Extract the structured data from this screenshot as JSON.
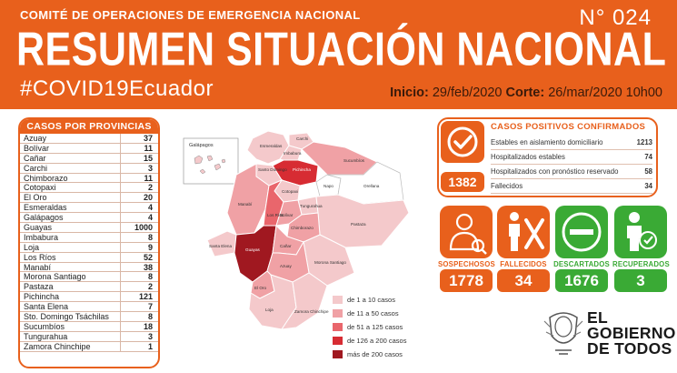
{
  "header": {
    "org": "COMITÉ DE OPERACIONES DE EMERGENCIA NACIONAL",
    "number": "N° 024",
    "title": "RESUMEN SITUACIÓN NACIONAL",
    "hashtag": "#COVID19Ecuador",
    "start_label": "Inicio:",
    "start_value": "29/feb/2020",
    "cut_label": "Corte:",
    "cut_value": "26/mar/2020 10h00"
  },
  "provinces": {
    "title": "CASOS POR PROVINCIAS",
    "rows": [
      {
        "name": "Azuay",
        "value": "37"
      },
      {
        "name": "Bolívar",
        "value": "11"
      },
      {
        "name": "Cañar",
        "value": "15"
      },
      {
        "name": "Carchi",
        "value": "3"
      },
      {
        "name": "Chimborazo",
        "value": "11"
      },
      {
        "name": "Cotopaxi",
        "value": "2"
      },
      {
        "name": "El Oro",
        "value": "20"
      },
      {
        "name": "Esmeraldas",
        "value": "4"
      },
      {
        "name": "Galápagos",
        "value": "4"
      },
      {
        "name": "Guayas",
        "value": "1000"
      },
      {
        "name": "Imbabura",
        "value": "8"
      },
      {
        "name": "Loja",
        "value": "9"
      },
      {
        "name": "Los Ríos",
        "value": "52"
      },
      {
        "name": "Manabí",
        "value": "38"
      },
      {
        "name": "Morona Santiago",
        "value": "8"
      },
      {
        "name": "Pastaza",
        "value": "2"
      },
      {
        "name": "Pichincha",
        "value": "121"
      },
      {
        "name": "Santa Elena",
        "value": "7"
      },
      {
        "name": "Sto. Domingo Tsáchilas",
        "value": "8"
      },
      {
        "name": "Sucumbíos",
        "value": "18"
      },
      {
        "name": "Tungurahua",
        "value": "3"
      },
      {
        "name": "Zamora Chinchipe",
        "value": "1"
      }
    ]
  },
  "map": {
    "galapagos_label": "Galápagos",
    "labels": {
      "esmeraldas": "Esmeraldas",
      "carchi": "Carchi",
      "imbabura": "Imbabura",
      "pichincha": "Pichincha",
      "sucumbios": "Sucumbíos",
      "sto_domingo": "Santo Domingo",
      "napo": "Napo",
      "orellana": "Orellana",
      "manabi": "Manabí",
      "cotopaxi": "Cotopaxi",
      "los_rios": "Los Ríos",
      "tungurahua": "Tungurahua",
      "bolivar": "Bolívar",
      "pastaza": "Pastaza",
      "santa_elena": "Santa Elena",
      "guayas": "Guayas",
      "chimborazo": "Chimborazo",
      "canar": "Cañar",
      "morona": "Morona Santiago",
      "azuay": "Azuay",
      "el_oro": "El Oro",
      "loja": "Loja",
      "zamora": "Zamora Chinchipe"
    },
    "legend": [
      {
        "label": "de 1 a 10 casos",
        "color": "#f4c9cb"
      },
      {
        "label": "de 11 a 50 casos",
        "color": "#f0a1a5"
      },
      {
        "label": "de 51 a 125 casos",
        "color": "#e9666c"
      },
      {
        "label": "de 126 a 200 casos",
        "color": "#d72c33"
      },
      {
        "label": "más de 200 casos",
        "color": "#a01820"
      }
    ]
  },
  "confirmed": {
    "title": "CASOS POSITIVOS CONFIRMADOS",
    "total": "1382",
    "rows": [
      {
        "label": "Estables en aislamiento domiciliario",
        "value": "1213"
      },
      {
        "label": "Hospitalizados estables",
        "value": "74"
      },
      {
        "label": "Hospitalizados con pronóstico reservado",
        "value": "58"
      },
      {
        "label": "Fallecidos",
        "value": "34"
      }
    ]
  },
  "stats": [
    {
      "label": "SOSPECHOSOS",
      "value": "1778",
      "color": "#e8601c",
      "icon": "doctor-icon"
    },
    {
      "label": "FALLECIDOS",
      "value": "34",
      "color": "#e8601c",
      "icon": "deceased-icon"
    },
    {
      "label": "DESCARTADOS",
      "value": "1676",
      "color": "#3aaa35",
      "icon": "discarded-icon"
    },
    {
      "label": "RECUPERADOS",
      "value": "3",
      "color": "#3aaa35",
      "icon": "recovered-icon"
    }
  ],
  "footer": {
    "gov_line1": "EL",
    "gov_line2": "GOBIERNO",
    "gov_line3": "DE TODOS"
  },
  "colors": {
    "brand": "#e8601c",
    "green": "#3aaa35"
  }
}
